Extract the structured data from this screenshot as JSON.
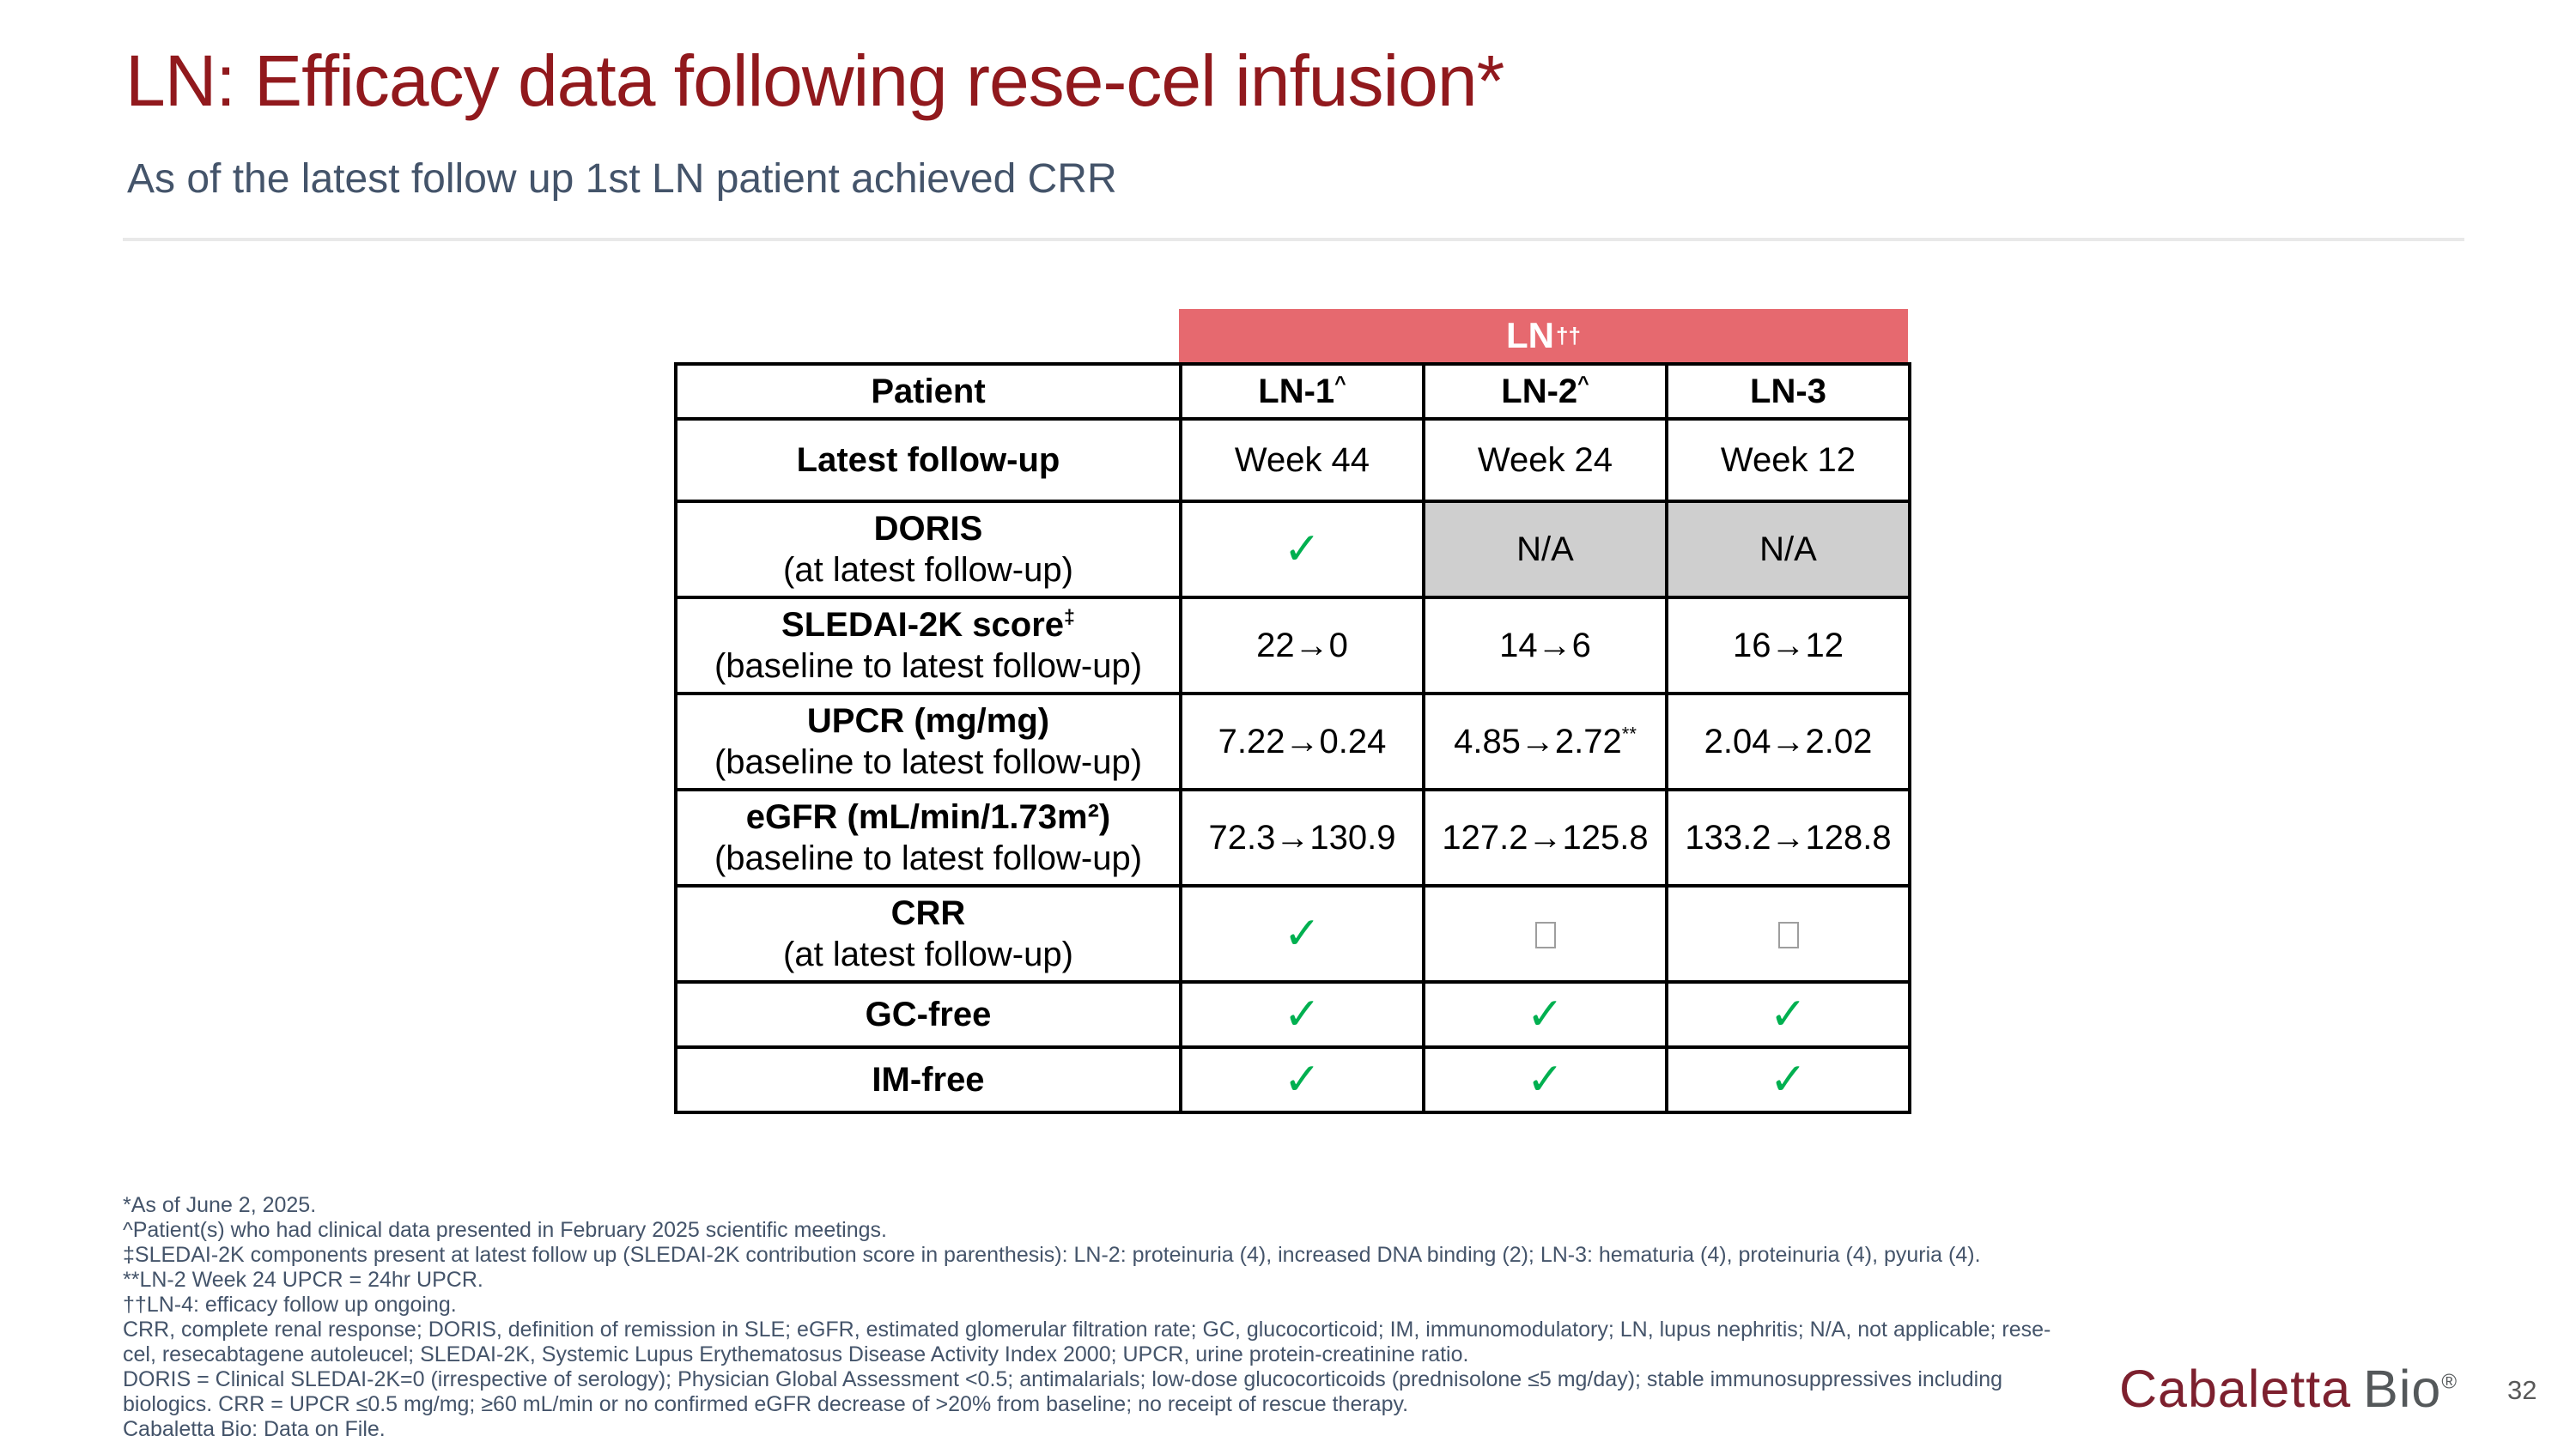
{
  "slide": {
    "title": "LN: Efficacy data following rese-cel infusion*",
    "subtitle": "As of the latest follow up 1st LN patient achieved CRR"
  },
  "table": {
    "banner": {
      "text": "LN",
      "sup": "††"
    },
    "header": {
      "patient_label": "Patient",
      "columns": [
        {
          "label": "LN-1",
          "sup": "^"
        },
        {
          "label": "LN-2",
          "sup": "^"
        },
        {
          "label": "LN-3",
          "sup": ""
        }
      ]
    },
    "check_symbol": "✓",
    "rows": [
      {
        "label": "Latest follow-up",
        "label_sup": "",
        "sublabel": "",
        "cells": [
          {
            "type": "text",
            "value": "Week 44"
          },
          {
            "type": "text",
            "value": "Week 24"
          },
          {
            "type": "text",
            "value": "Week 12"
          }
        ]
      },
      {
        "label": "DORIS",
        "label_sup": "",
        "sublabel": "(at latest follow-up)",
        "cells": [
          {
            "type": "check"
          },
          {
            "type": "na",
            "value": "N/A"
          },
          {
            "type": "na",
            "value": "N/A"
          }
        ]
      },
      {
        "label": "SLEDAI-2K score",
        "label_sup": "‡",
        "sublabel": "(baseline to latest follow-up)",
        "cells": [
          {
            "type": "text",
            "value": "22→0"
          },
          {
            "type": "text",
            "value": "14→6"
          },
          {
            "type": "text",
            "value": "16→12"
          }
        ]
      },
      {
        "label": "UPCR (mg/mg)",
        "label_sup": "",
        "sublabel": "(baseline to latest follow-up)",
        "cells": [
          {
            "type": "text",
            "value": "7.22→0.24"
          },
          {
            "type": "text",
            "value": "4.85→2.72",
            "sup": "**"
          },
          {
            "type": "text",
            "value": "2.04→2.02"
          }
        ]
      },
      {
        "label": "eGFR (mL/min/1.73m²)",
        "label_sup": "",
        "sublabel": "(baseline to latest follow-up)",
        "cells": [
          {
            "type": "text",
            "value": "72.3→130.9"
          },
          {
            "type": "text",
            "value": "127.2→125.8"
          },
          {
            "type": "text",
            "value": "133.2→128.8"
          }
        ]
      },
      {
        "label": "CRR",
        "label_sup": "",
        "sublabel": "(at latest follow-up)",
        "cells": [
          {
            "type": "check"
          },
          {
            "type": "box"
          },
          {
            "type": "box"
          }
        ]
      },
      {
        "label": "GC-free",
        "label_sup": "",
        "sublabel": "",
        "cells": [
          {
            "type": "check"
          },
          {
            "type": "check"
          },
          {
            "type": "check"
          }
        ]
      },
      {
        "label": "IM-free",
        "label_sup": "",
        "sublabel": "",
        "cells": [
          {
            "type": "check"
          },
          {
            "type": "check"
          },
          {
            "type": "check"
          }
        ]
      }
    ]
  },
  "footnotes": [
    "*As of June 2, 2025.",
    "^Patient(s) who had clinical data presented in February 2025 scientific meetings.",
    "‡SLEDAI-2K components present at latest follow up (SLEDAI-2K contribution score in parenthesis): LN-2: proteinuria (4), increased DNA binding (2); LN-3: hematuria (4), proteinuria (4), pyuria (4).",
    "**LN-2 Week 24 UPCR = 24hr UPCR.",
    "††LN-4: efficacy follow up ongoing.",
    "CRR, complete renal response; DORIS, definition of remission in SLE; eGFR, estimated glomerular filtration rate; GC, glucocorticoid; IM, immunomodulatory; LN, lupus nephritis; N/A, not applicable; rese-",
    "cel, resecabtagene autoleucel; SLEDAI-2K, Systemic Lupus Erythematosus Disease Activity Index 2000; UPCR, urine protein-creatinine ratio.",
    "DORIS = Clinical SLEDAI-2K=0 (irrespective of serology); Physician Global Assessment <0.5; antimalarials; low-dose glucocorticoids (prednisolone ≤5 mg/day); stable immunosuppressives including",
    "biologics. CRR = UPCR ≤0.5 mg/mg; ≥60 mL/min or no confirmed eGFR decrease of >20% from baseline; no receipt of rescue therapy.",
    "Cabaletta Bio: Data on File."
  ],
  "footer": {
    "logo_part1": "Cabaletta",
    "logo_part2": "Bio",
    "logo_reg": "®",
    "page_number": "32"
  },
  "colors": {
    "title_maroon": "#91191D",
    "subtitle_slate": "#44546A",
    "banner_coral": "#E6696F",
    "na_gray": "#CFCFCF",
    "check_green": "#00B050",
    "logo_maroon": "#7D202E",
    "logo_gray": "#54585A"
  }
}
